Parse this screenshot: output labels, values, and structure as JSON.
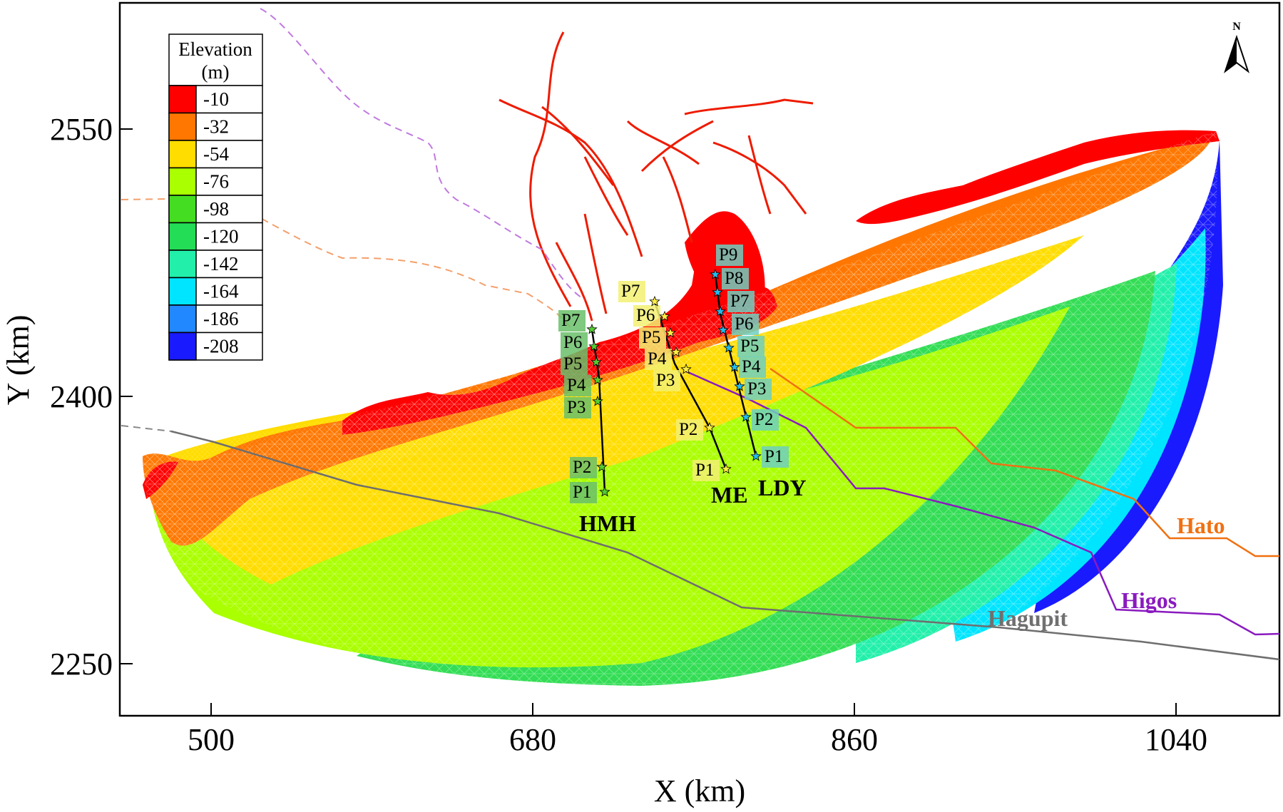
{
  "axes": {
    "xlabel": "X (km)",
    "ylabel": "Y (km)",
    "xticks": [
      "500",
      "680",
      "860",
      "1040"
    ],
    "yticks": [
      "2550",
      "2400",
      "2250"
    ]
  },
  "legend": {
    "title_line1": "Elevation",
    "title_line2": "(m)",
    "entries": [
      {
        "value": "-10",
        "color": "#ff0000"
      },
      {
        "value": "-32",
        "color": "#ff7700"
      },
      {
        "value": "-54",
        "color": "#ffdd00"
      },
      {
        "value": "-76",
        "color": "#aaff00"
      },
      {
        "value": "-98",
        "color": "#44dd22"
      },
      {
        "value": "-120",
        "color": "#22dd55"
      },
      {
        "value": "-142",
        "color": "#22f0aa"
      },
      {
        "value": "-164",
        "color": "#00e5ff"
      },
      {
        "value": "-186",
        "color": "#2288ff"
      },
      {
        "value": "-208",
        "color": "#1a1aff"
      }
    ]
  },
  "north_arrow": {
    "label": "N",
    "icon": "north-arrow-icon"
  },
  "transects": [
    {
      "name": "HMH",
      "star_color": "#55cc33",
      "points": [
        "P1",
        "P2",
        "P3",
        "P4",
        "P5",
        "P6",
        "P7"
      ]
    },
    {
      "name": "ME",
      "star_color": "#ffee44",
      "points": [
        "P1",
        "P2",
        "P3",
        "P4",
        "P5",
        "P6",
        "P7"
      ]
    },
    {
      "name": "LDY",
      "star_color": "#22bbee",
      "points": [
        "P1",
        "P2",
        "P3",
        "P4",
        "P5",
        "P6",
        "P7",
        "P8",
        "P9"
      ]
    }
  ],
  "storm_tracks": [
    {
      "name": "Hato",
      "color": "#f07010"
    },
    {
      "name": "Higos",
      "color": "#8a1abf"
    },
    {
      "name": "Hagupit",
      "color": "#707070"
    }
  ]
}
